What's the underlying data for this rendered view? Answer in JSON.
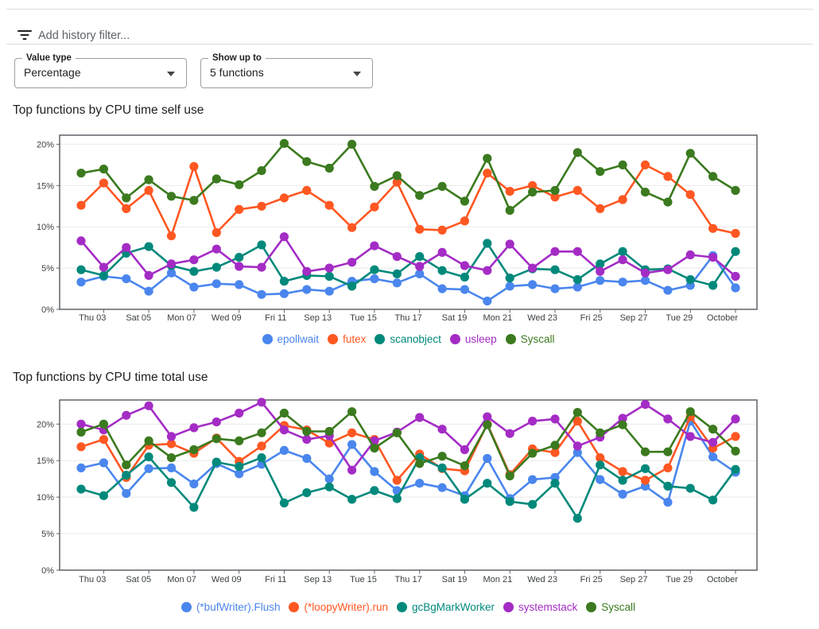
{
  "filter_bar": {
    "icon": "filter-list-icon",
    "placeholder": "Add history filter..."
  },
  "controls": {
    "value_type": {
      "label": "Value type",
      "value": "Percentage"
    },
    "show_up_to": {
      "label": "Show up to",
      "value": "5 functions"
    }
  },
  "chart_data": [
    {
      "type": "line",
      "title": "Top functions by CPU time self use",
      "ylim": [
        0,
        21.1
      ],
      "ytick_values": [
        0,
        5,
        10,
        15,
        20
      ],
      "ytick_labels": [
        "0%",
        "5%",
        "10%",
        "15%",
        "20%"
      ],
      "xtick_labels": [
        "Thu 03",
        "Sat 05",
        "Mon 07",
        "Wed 09",
        "Fri 11",
        "Sep 13",
        "Tue 15",
        "Thu 17",
        "Sat 19",
        "Mon 21",
        "Wed 23",
        "Fri 25",
        "Sep 27",
        "Tue 29",
        "October"
      ],
      "x_note": "30 daily samples; one x label under every second point",
      "grid": true,
      "legend_position": "bottom",
      "series": [
        {
          "name": "epollwait",
          "color": "#4a86ee",
          "values": [
            3.3,
            4.0,
            3.7,
            2.2,
            4.4,
            2.7,
            3.1,
            3.0,
            1.8,
            1.9,
            2.4,
            2.2,
            3.4,
            3.7,
            3.2,
            4.3,
            2.5,
            2.4,
            1.0,
            2.8,
            3.0,
            2.5,
            2.7,
            3.5,
            3.3,
            3.5,
            2.3,
            2.9,
            6.5,
            2.6
          ]
        },
        {
          "name": "futex",
          "color": "#ff5722",
          "values": [
            12.6,
            15.3,
            12.2,
            14.4,
            8.9,
            17.3,
            9.3,
            12.1,
            12.5,
            13.5,
            14.4,
            12.6,
            9.9,
            12.4,
            15.4,
            9.7,
            9.6,
            10.7,
            16.5,
            14.3,
            15.0,
            13.6,
            14.4,
            12.2,
            13.3,
            17.5,
            16.1,
            13.9,
            9.8,
            9.2
          ]
        },
        {
          "name": "scanobject",
          "color": "#00897b",
          "values": [
            4.8,
            4.1,
            6.8,
            7.6,
            5.3,
            4.6,
            5.1,
            6.3,
            7.8,
            3.4,
            4.1,
            4.0,
            2.8,
            4.8,
            4.3,
            6.4,
            4.7,
            3.9,
            8.0,
            3.8,
            4.9,
            4.8,
            3.6,
            5.5,
            7.0,
            4.8,
            4.9,
            3.6,
            2.9,
            7.0
          ]
        },
        {
          "name": "usleep",
          "color": "#a42cc5",
          "values": [
            8.3,
            5.1,
            7.5,
            4.1,
            5.5,
            6.0,
            7.3,
            5.2,
            5.1,
            8.8,
            4.6,
            5.0,
            5.7,
            7.7,
            6.4,
            5.2,
            6.9,
            5.3,
            4.7,
            7.9,
            5.0,
            7.0,
            7.0,
            4.6,
            6.0,
            4.4,
            4.8,
            6.6,
            6.3,
            4.0
          ]
        },
        {
          "name": "Syscall",
          "color": "#3b7a1f",
          "values": [
            16.5,
            17.0,
            13.5,
            15.7,
            13.7,
            13.2,
            15.8,
            15.1,
            16.8,
            20.1,
            17.9,
            17.1,
            20.0,
            14.9,
            16.2,
            13.8,
            14.9,
            13.1,
            18.3,
            12.0,
            14.2,
            14.4,
            19.0,
            16.7,
            17.5,
            14.2,
            13.0,
            18.9,
            16.1,
            14.4
          ]
        }
      ]
    },
    {
      "type": "line",
      "title": "Top functions by CPU time total use",
      "ylim": [
        0,
        23.3
      ],
      "ytick_values": [
        0,
        5,
        10,
        15,
        20
      ],
      "ytick_labels": [
        "0%",
        "5%",
        "10%",
        "15%",
        "20%"
      ],
      "xtick_labels": [
        "Thu 03",
        "Sat 05",
        "Mon 07",
        "Wed 09",
        "Fri 11",
        "Sep 13",
        "Tue 15",
        "Thu 17",
        "Sat 19",
        "Mon 21",
        "Wed 23",
        "Fri 25",
        "Sep 27",
        "Tue 29",
        "October"
      ],
      "x_note": "30 daily samples; one x label under every second point",
      "grid": true,
      "legend_position": "bottom",
      "series": [
        {
          "name": "(*bufWriter).Flush",
          "color": "#4a86ee",
          "values": [
            14.0,
            14.7,
            10.5,
            13.9,
            14.0,
            11.8,
            14.6,
            13.2,
            14.5,
            16.4,
            15.3,
            12.5,
            17.2,
            13.5,
            10.9,
            11.9,
            11.3,
            10.2,
            15.3,
            9.8,
            12.4,
            12.7,
            16.1,
            12.4,
            10.4,
            11.5,
            9.3,
            20.4,
            15.5,
            13.4
          ]
        },
        {
          "name": "(*loopyWriter).run",
          "color": "#ff5722",
          "values": [
            16.9,
            17.9,
            12.7,
            17.1,
            17.3,
            16.0,
            18.1,
            14.9,
            17.0,
            19.8,
            19.2,
            17.4,
            18.8,
            17.9,
            12.3,
            15.9,
            13.9,
            13.6,
            20.0,
            13.1,
            16.6,
            16.1,
            20.4,
            15.4,
            13.5,
            12.3,
            14.0,
            21.0,
            16.7,
            18.3
          ]
        },
        {
          "name": "gcBgMarkWorker",
          "color": "#00897b",
          "values": [
            11.1,
            10.2,
            13.0,
            15.5,
            12.0,
            8.6,
            14.8,
            14.2,
            15.4,
            9.2,
            10.6,
            11.4,
            9.7,
            10.9,
            9.8,
            15.4,
            14.0,
            9.7,
            11.9,
            9.4,
            9.0,
            11.9,
            7.1,
            14.4,
            12.3,
            13.9,
            11.5,
            11.2,
            9.6,
            13.8
          ]
        },
        {
          "name": "systemstack",
          "color": "#a42cc5",
          "values": [
            20.0,
            19.2,
            21.2,
            22.5,
            18.3,
            19.5,
            20.3,
            21.5,
            23.0,
            19.2,
            17.9,
            18.4,
            13.7,
            17.7,
            18.9,
            20.9,
            19.3,
            16.5,
            21.0,
            18.7,
            20.4,
            20.7,
            17.0,
            18.2,
            20.8,
            22.7,
            20.7,
            18.3,
            17.5,
            20.7
          ]
        },
        {
          "name": "Syscall",
          "color": "#3b7a1f",
          "values": [
            18.9,
            20.0,
            14.4,
            17.7,
            15.4,
            16.5,
            18.0,
            17.7,
            18.8,
            21.5,
            19.0,
            19.0,
            21.7,
            16.7,
            18.8,
            14.6,
            15.6,
            14.3,
            19.9,
            12.9,
            16.0,
            17.1,
            21.6,
            18.8,
            19.9,
            16.2,
            16.2,
            21.7,
            19.3,
            16.3
          ]
        }
      ]
    }
  ]
}
